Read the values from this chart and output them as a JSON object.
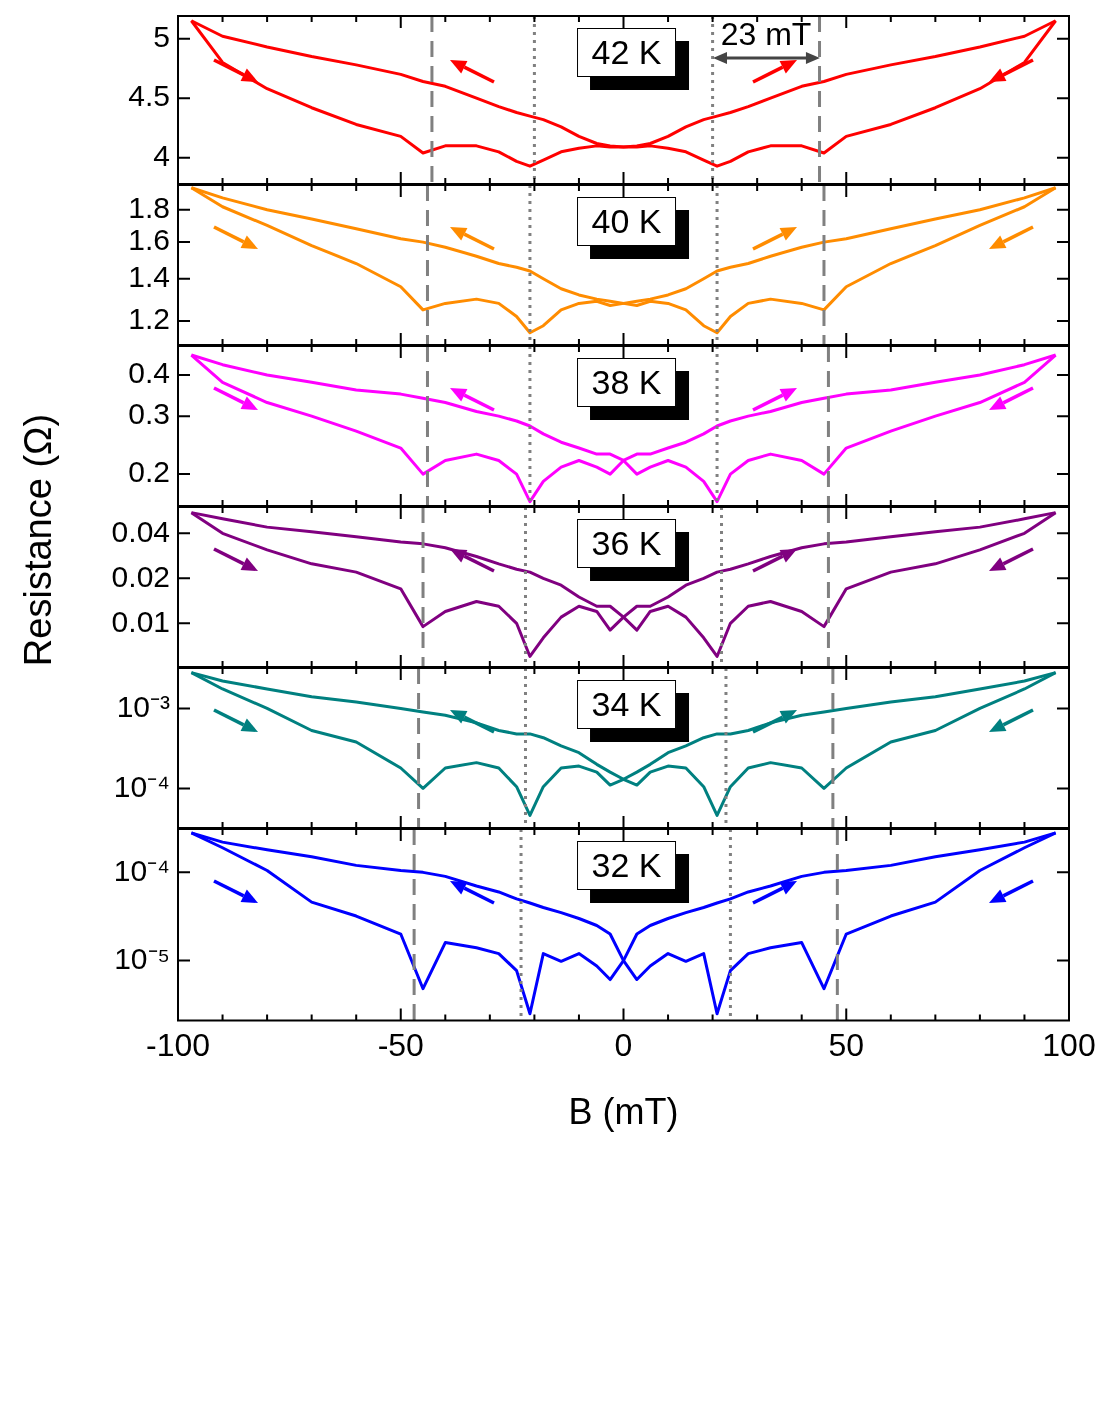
{
  "chart_data": [
    {
      "type": "line",
      "title": "42 K",
      "x": [
        -97,
        -90,
        -80,
        -70,
        -60,
        -50,
        -45,
        -40,
        -33,
        -28,
        -24,
        -21,
        -18,
        -14,
        -10,
        -6,
        -3,
        0,
        3,
        6,
        10,
        14,
        18,
        21,
        24,
        28,
        33,
        40,
        45,
        50,
        60,
        70,
        80,
        90,
        97
      ],
      "xlim": [
        -100,
        100
      ],
      "xticks": [
        -100,
        {
          "value": -90,
          "label": null
        },
        {
          "value": -80,
          "label": null
        },
        {
          "value": -70,
          "label": null
        },
        {
          "value": -60,
          "label": null
        },
        -50,
        {
          "value": -40,
          "label": null
        },
        {
          "value": -30,
          "label": null
        },
        {
          "value": -20,
          "label": null
        },
        {
          "value": -10,
          "label": null
        },
        0,
        {
          "value": 10,
          "label": null
        },
        {
          "value": 20,
          "label": null
        },
        {
          "value": 30,
          "label": null
        },
        {
          "value": 40,
          "label": null
        },
        50,
        {
          "value": 60,
          "label": null
        },
        {
          "value": 70,
          "label": null
        },
        {
          "value": 80,
          "label": null
        },
        {
          "value": 90,
          "label": null
        },
        100
      ],
      "ylim": [
        3.78,
        5.19
      ],
      "yticks": [
        4,
        4.5,
        5
      ],
      "tick_labels": "y",
      "legend": false,
      "series": [
        {
          "color": "#ff0000",
          "values": [
            5.15,
            4.8,
            4.58,
            4.42,
            4.28,
            4.18,
            4.04,
            4.1,
            4.1,
            4.05,
            3.97,
            3.93,
            3.98,
            4.05,
            4.08,
            4.1,
            4.09,
            4.09,
            4.1,
            4.12,
            4.18,
            4.26,
            4.32,
            4.35,
            4.38,
            4.43,
            4.5,
            4.6,
            4.64,
            4.7,
            4.78,
            4.85,
            4.93,
            5.02,
            5.15
          ]
        },
        {
          "color": "#ff0000",
          "values": [
            5.15,
            5.02,
            4.93,
            4.85,
            4.78,
            4.7,
            4.64,
            4.6,
            4.5,
            4.43,
            4.38,
            4.35,
            4.32,
            4.26,
            4.18,
            4.12,
            4.1,
            4.09,
            4.09,
            4.1,
            4.08,
            4.05,
            3.98,
            3.93,
            3.97,
            4.05,
            4.1,
            4.1,
            4.04,
            4.18,
            4.28,
            4.42,
            4.58,
            4.8,
            5.15
          ]
        }
      ],
      "ref_lines": [
        {
          "axis": "x",
          "value": -43,
          "color": "#808080",
          "line_style": "dashed"
        },
        {
          "axis": "x",
          "value": 44,
          "color": "#808080",
          "line_style": "dashed"
        },
        {
          "axis": "x",
          "value": -20,
          "color": "#808080",
          "line_style": "dotted"
        },
        {
          "axis": "x",
          "value": 20,
          "color": "#808080",
          "line_style": "dotted"
        }
      ],
      "annotations": [
        "23 mT"
      ]
    },
    {
      "type": "line",
      "title": "40 K",
      "x": [
        -97,
        -90,
        -80,
        -70,
        -60,
        -50,
        -45,
        -40,
        -33,
        -28,
        -24,
        -21,
        -18,
        -14,
        -10,
        -6,
        -3,
        0,
        3,
        6,
        10,
        14,
        18,
        21,
        24,
        28,
        33,
        40,
        45,
        50,
        60,
        70,
        80,
        90,
        97
      ],
      "xlim": [
        -100,
        100
      ],
      "xticks": [
        -100,
        {
          "value": -90,
          "label": null
        },
        {
          "value": -80,
          "label": null
        },
        {
          "value": -70,
          "label": null
        },
        {
          "value": -60,
          "label": null
        },
        -50,
        {
          "value": -40,
          "label": null
        },
        {
          "value": -30,
          "label": null
        },
        {
          "value": -20,
          "label": null
        },
        {
          "value": -10,
          "label": null
        },
        0,
        {
          "value": 10,
          "label": null
        },
        {
          "value": 20,
          "label": null
        },
        {
          "value": 30,
          "label": null
        },
        {
          "value": 40,
          "label": null
        },
        50,
        {
          "value": 60,
          "label": null
        },
        {
          "value": 70,
          "label": null
        },
        {
          "value": 80,
          "label": null
        },
        {
          "value": 90,
          "label": null
        },
        100
      ],
      "ylim": [
        1.1,
        1.97
      ],
      "yticks": [
        1.2,
        1.4,
        1.6,
        1.8
      ],
      "log": true,
      "tick_labels": "y",
      "legend": false,
      "series": [
        {
          "color": "#ff8c00",
          "values": [
            1.95,
            1.82,
            1.7,
            1.58,
            1.48,
            1.36,
            1.25,
            1.28,
            1.3,
            1.28,
            1.22,
            1.15,
            1.18,
            1.25,
            1.28,
            1.29,
            1.27,
            1.28,
            1.29,
            1.3,
            1.32,
            1.35,
            1.4,
            1.44,
            1.46,
            1.48,
            1.52,
            1.57,
            1.6,
            1.62,
            1.68,
            1.74,
            1.8,
            1.88,
            1.95
          ]
        },
        {
          "color": "#ff8c00",
          "values": [
            1.95,
            1.88,
            1.8,
            1.74,
            1.68,
            1.62,
            1.6,
            1.57,
            1.52,
            1.48,
            1.46,
            1.44,
            1.4,
            1.35,
            1.32,
            1.3,
            1.29,
            1.28,
            1.27,
            1.29,
            1.28,
            1.25,
            1.18,
            1.15,
            1.22,
            1.28,
            1.3,
            1.28,
            1.25,
            1.36,
            1.48,
            1.58,
            1.7,
            1.82,
            1.95
          ]
        }
      ],
      "ref_lines": [
        {
          "axis": "x",
          "value": -44,
          "color": "#808080",
          "line_style": "dashed"
        },
        {
          "axis": "x",
          "value": 45,
          "color": "#808080",
          "line_style": "dashed"
        },
        {
          "axis": "x",
          "value": -21,
          "color": "#808080",
          "line_style": "dotted"
        },
        {
          "axis": "x",
          "value": 21,
          "color": "#808080",
          "line_style": "dotted"
        }
      ]
    },
    {
      "type": "line",
      "title": "38 K",
      "ylabel": "Resistance (Ω)",
      "x": [
        -97,
        -90,
        -80,
        -70,
        -60,
        -50,
        -45,
        -40,
        -33,
        -28,
        -24,
        -21,
        -18,
        -14,
        -10,
        -6,
        -3,
        0,
        3,
        6,
        10,
        14,
        18,
        21,
        24,
        28,
        33,
        40,
        45,
        50,
        60,
        70,
        80,
        90,
        97
      ],
      "xlim": [
        -100,
        100
      ],
      "xticks": [
        -100,
        {
          "value": -90,
          "label": null
        },
        {
          "value": -80,
          "label": null
        },
        {
          "value": -70,
          "label": null
        },
        {
          "value": -60,
          "label": null
        },
        -50,
        {
          "value": -40,
          "label": null
        },
        {
          "value": -30,
          "label": null
        },
        {
          "value": -20,
          "label": null
        },
        {
          "value": -10,
          "label": null
        },
        0,
        {
          "value": 10,
          "label": null
        },
        {
          "value": 20,
          "label": null
        },
        {
          "value": 30,
          "label": null
        },
        {
          "value": 40,
          "label": null
        },
        50,
        {
          "value": 60,
          "label": null
        },
        {
          "value": 70,
          "label": null
        },
        {
          "value": 80,
          "label": null
        },
        {
          "value": 90,
          "label": null
        },
        100
      ],
      "ylim": [
        0.16,
        0.49
      ],
      "yticks": [
        0.2,
        0.3,
        0.4
      ],
      "log": true,
      "tick_labels": "y",
      "legend": false,
      "series": [
        {
          "color": "#ff00ff",
          "values": [
            0.46,
            0.38,
            0.33,
            0.3,
            0.27,
            0.24,
            0.2,
            0.22,
            0.23,
            0.22,
            0.2,
            0.165,
            0.19,
            0.21,
            0.22,
            0.21,
            0.2,
            0.22,
            0.23,
            0.23,
            0.24,
            0.25,
            0.265,
            0.28,
            0.29,
            0.3,
            0.31,
            0.33,
            0.34,
            0.35,
            0.36,
            0.38,
            0.4,
            0.43,
            0.46
          ]
        },
        {
          "color": "#ff00ff",
          "values": [
            0.46,
            0.43,
            0.4,
            0.38,
            0.36,
            0.35,
            0.34,
            0.33,
            0.31,
            0.3,
            0.29,
            0.28,
            0.265,
            0.25,
            0.24,
            0.23,
            0.23,
            0.22,
            0.2,
            0.21,
            0.22,
            0.21,
            0.19,
            0.165,
            0.2,
            0.22,
            0.23,
            0.22,
            0.2,
            0.24,
            0.27,
            0.3,
            0.33,
            0.38,
            0.46
          ]
        }
      ],
      "ref_lines": [
        {
          "axis": "x",
          "value": -44,
          "color": "#808080",
          "line_style": "dashed"
        },
        {
          "axis": "x",
          "value": 46,
          "color": "#808080",
          "line_style": "dashed"
        },
        {
          "axis": "x",
          "value": -21,
          "color": "#808080",
          "line_style": "dotted"
        },
        {
          "axis": "x",
          "value": 21,
          "color": "#808080",
          "line_style": "dotted"
        }
      ]
    },
    {
      "type": "line",
      "title": "36 K",
      "x": [
        -97,
        -90,
        -80,
        -70,
        -60,
        -50,
        -45,
        -40,
        -33,
        -28,
        -24,
        -21,
        -18,
        -14,
        -10,
        -6,
        -3,
        0,
        3,
        6,
        10,
        14,
        18,
        21,
        24,
        28,
        33,
        40,
        45,
        50,
        60,
        70,
        80,
        90,
        97
      ],
      "xlim": [
        -100,
        100
      ],
      "xticks": [
        -100,
        {
          "value": -90,
          "label": null
        },
        {
          "value": -80,
          "label": null
        },
        {
          "value": -70,
          "label": null
        },
        {
          "value": -60,
          "label": null
        },
        -50,
        {
          "value": -40,
          "label": null
        },
        {
          "value": -30,
          "label": null
        },
        {
          "value": -20,
          "label": null
        },
        {
          "value": -10,
          "label": null
        },
        0,
        {
          "value": 10,
          "label": null
        },
        {
          "value": 20,
          "label": null
        },
        {
          "value": 30,
          "label": null
        },
        {
          "value": 40,
          "label": null
        },
        50,
        {
          "value": 60,
          "label": null
        },
        {
          "value": 70,
          "label": null
        },
        {
          "value": 80,
          "label": null
        },
        {
          "value": 90,
          "label": null
        },
        100
      ],
      "ylim": [
        0.0051,
        0.06
      ],
      "yticks": [
        0.01,
        0.02,
        0.04
      ],
      "log": true,
      "tick_labels": "y",
      "legend": false,
      "series": [
        {
          "color": "#800080",
          "values": [
            0.055,
            0.04,
            0.031,
            0.025,
            0.022,
            0.017,
            0.0095,
            0.012,
            0.014,
            0.013,
            0.01,
            0.006,
            0.008,
            0.011,
            0.013,
            0.012,
            0.009,
            0.011,
            0.013,
            0.013,
            0.015,
            0.018,
            0.02,
            0.022,
            0.023,
            0.025,
            0.028,
            0.032,
            0.034,
            0.035,
            0.038,
            0.041,
            0.044,
            0.05,
            0.055
          ]
        },
        {
          "color": "#800080",
          "values": [
            0.055,
            0.05,
            0.044,
            0.041,
            0.038,
            0.035,
            0.034,
            0.032,
            0.028,
            0.025,
            0.023,
            0.022,
            0.02,
            0.018,
            0.015,
            0.013,
            0.013,
            0.011,
            0.009,
            0.012,
            0.013,
            0.011,
            0.008,
            0.006,
            0.01,
            0.013,
            0.014,
            0.012,
            0.0095,
            0.017,
            0.022,
            0.025,
            0.031,
            0.04,
            0.055
          ]
        }
      ],
      "ref_lines": [
        {
          "axis": "x",
          "value": -45,
          "color": "#808080",
          "line_style": "dashed"
        },
        {
          "axis": "x",
          "value": 46,
          "color": "#808080",
          "line_style": "dashed"
        },
        {
          "axis": "x",
          "value": -22,
          "color": "#808080",
          "line_style": "dotted"
        },
        {
          "axis": "x",
          "value": 22,
          "color": "#808080",
          "line_style": "dotted"
        }
      ]
    },
    {
      "type": "line",
      "title": "34 K",
      "x": [
        -97,
        -90,
        -80,
        -70,
        -60,
        -50,
        -45,
        -40,
        -33,
        -28,
        -24,
        -21,
        -18,
        -14,
        -10,
        -6,
        -3,
        0,
        3,
        6,
        10,
        14,
        18,
        21,
        24,
        28,
        33,
        40,
        45,
        50,
        60,
        70,
        80,
        90,
        97
      ],
      "xlim": [
        -100,
        100
      ],
      "xticks": [
        -100,
        {
          "value": -90,
          "label": null
        },
        {
          "value": -80,
          "label": null
        },
        {
          "value": -70,
          "label": null
        },
        {
          "value": -60,
          "label": null
        },
        -50,
        {
          "value": -40,
          "label": null
        },
        {
          "value": -30,
          "label": null
        },
        {
          "value": -20,
          "label": null
        },
        {
          "value": -10,
          "label": null
        },
        0,
        {
          "value": 10,
          "label": null
        },
        {
          "value": 20,
          "label": null
        },
        {
          "value": 30,
          "label": null
        },
        {
          "value": 40,
          "label": null
        },
        50,
        {
          "value": 60,
          "label": null
        },
        {
          "value": 70,
          "label": null
        },
        {
          "value": 80,
          "label": null
        },
        {
          "value": 90,
          "label": null
        },
        100
      ],
      "ylim": [
        3.2e-05,
        0.0032
      ],
      "yticks": [
        {
          "value": 0.0001,
          "label": "10⁻⁴"
        },
        {
          "value": 0.001,
          "label": "10⁻³"
        }
      ],
      "log": true,
      "tick_labels": "y",
      "legend": false,
      "series": [
        {
          "color": "#008080",
          "values": [
            0.0028,
            0.00175,
            0.001,
            0.00053,
            0.00038,
            0.00018,
            0.0001,
            0.00018,
            0.00021,
            0.00018,
            0.000105,
            4.6e-05,
            0.000105,
            0.00018,
            0.00019,
            0.00016,
            0.00011,
            0.00013,
            0.00016,
            0.0002,
            0.00028,
            0.00034,
            0.00043,
            0.00048,
            0.00048,
            0.00053,
            0.00066,
            0.00082,
            0.0009,
            0.001,
            0.0012,
            0.0014,
            0.00175,
            0.0022,
            0.0028
          ]
        },
        {
          "color": "#008080",
          "values": [
            0.0028,
            0.0022,
            0.00175,
            0.0014,
            0.0012,
            0.001,
            0.0009,
            0.00082,
            0.00066,
            0.00053,
            0.00048,
            0.00048,
            0.00043,
            0.00034,
            0.00028,
            0.0002,
            0.00016,
            0.00013,
            0.00011,
            0.00016,
            0.00019,
            0.00018,
            0.000105,
            4.6e-05,
            0.000105,
            0.00018,
            0.00021,
            0.00018,
            0.0001,
            0.00018,
            0.00038,
            0.00053,
            0.001,
            0.00175,
            0.0028
          ]
        }
      ],
      "ref_lines": [
        {
          "axis": "x",
          "value": -46,
          "color": "#808080",
          "line_style": "dashed"
        },
        {
          "axis": "x",
          "value": 47,
          "color": "#808080",
          "line_style": "dashed"
        },
        {
          "axis": "x",
          "value": -22,
          "color": "#808080",
          "line_style": "dotted"
        },
        {
          "axis": "x",
          "value": 23,
          "color": "#808080",
          "line_style": "dotted"
        }
      ]
    },
    {
      "type": "line",
      "title": "32 K",
      "xlabel": "B (mT)",
      "x": [
        -97,
        -90,
        -80,
        -70,
        -60,
        -50,
        -45,
        -40,
        -33,
        -28,
        -24,
        -21,
        -18,
        -14,
        -10,
        -6,
        -3,
        0,
        3,
        6,
        10,
        14,
        18,
        21,
        24,
        28,
        33,
        40,
        45,
        50,
        60,
        70,
        80,
        90,
        97
      ],
      "xlim": [
        -100,
        100
      ],
      "xticks": [
        -100,
        {
          "value": -90,
          "label": null
        },
        {
          "value": -80,
          "label": null
        },
        {
          "value": -70,
          "label": null
        },
        {
          "value": -60,
          "label": null
        },
        -50,
        {
          "value": -40,
          "label": null
        },
        {
          "value": -30,
          "label": null
        },
        {
          "value": -20,
          "label": null
        },
        {
          "value": -10,
          "label": null
        },
        0,
        {
          "value": 10,
          "label": null
        },
        {
          "value": 20,
          "label": null
        },
        {
          "value": 30,
          "label": null
        },
        {
          "value": 40,
          "label": null
        },
        50,
        {
          "value": 60,
          "label": null
        },
        {
          "value": 70,
          "label": null
        },
        {
          "value": 80,
          "label": null
        },
        {
          "value": 90,
          "label": null
        },
        100
      ],
      "ylim": [
        2.1e-06,
        0.00031
      ],
      "yticks": [
        {
          "value": 1e-05,
          "label": "10⁻⁵"
        },
        {
          "value": 0.0001,
          "label": "10⁻⁴"
        }
      ],
      "log": true,
      "legend": false,
      "series": [
        {
          "color": "#0000ff",
          "values": [
            0.00028,
            0.00019,
            0.000105,
            4.6e-05,
            3.2e-05,
            2e-05,
            4.8e-06,
            1.6e-05,
            1.4e-05,
            1.2e-05,
            7.7e-06,
            2.5e-06,
            1.2e-05,
            9.8e-06,
            1.2e-05,
            8.7e-06,
            6.1e-06,
            1e-05,
            2e-05,
            2.5e-05,
            3e-05,
            3.5e-05,
            4e-05,
            4.5e-05,
            5e-05,
            6e-05,
            7e-05,
            9e-05,
            0.0001,
            0.000105,
            0.00012,
            0.00015,
            0.00018,
            0.00022,
            0.00028
          ]
        },
        {
          "color": "#0000ff",
          "values": [
            0.00028,
            0.00022,
            0.00018,
            0.00015,
            0.00012,
            0.000105,
            0.0001,
            9e-05,
            7e-05,
            6e-05,
            5e-05,
            4.5e-05,
            4e-05,
            3.5e-05,
            3e-05,
            2.5e-05,
            2e-05,
            1e-05,
            6.1e-06,
            8.7e-06,
            1.2e-05,
            9.8e-06,
            1.2e-05,
            2.5e-06,
            7.7e-06,
            1.2e-05,
            1.4e-05,
            1.6e-05,
            4.8e-06,
            2e-05,
            3.2e-05,
            4.6e-05,
            0.000105,
            0.00019,
            0.00028
          ]
        }
      ],
      "ref_lines": [
        {
          "axis": "x",
          "value": -47,
          "color": "#808080",
          "line_style": "dashed"
        },
        {
          "axis": "x",
          "value": 48,
          "color": "#808080",
          "line_style": "dashed"
        },
        {
          "axis": "x",
          "value": -23,
          "color": "#808080",
          "line_style": "dotted"
        },
        {
          "axis": "x",
          "value": 24,
          "color": "#808080",
          "line_style": "dotted"
        }
      ]
    }
  ]
}
